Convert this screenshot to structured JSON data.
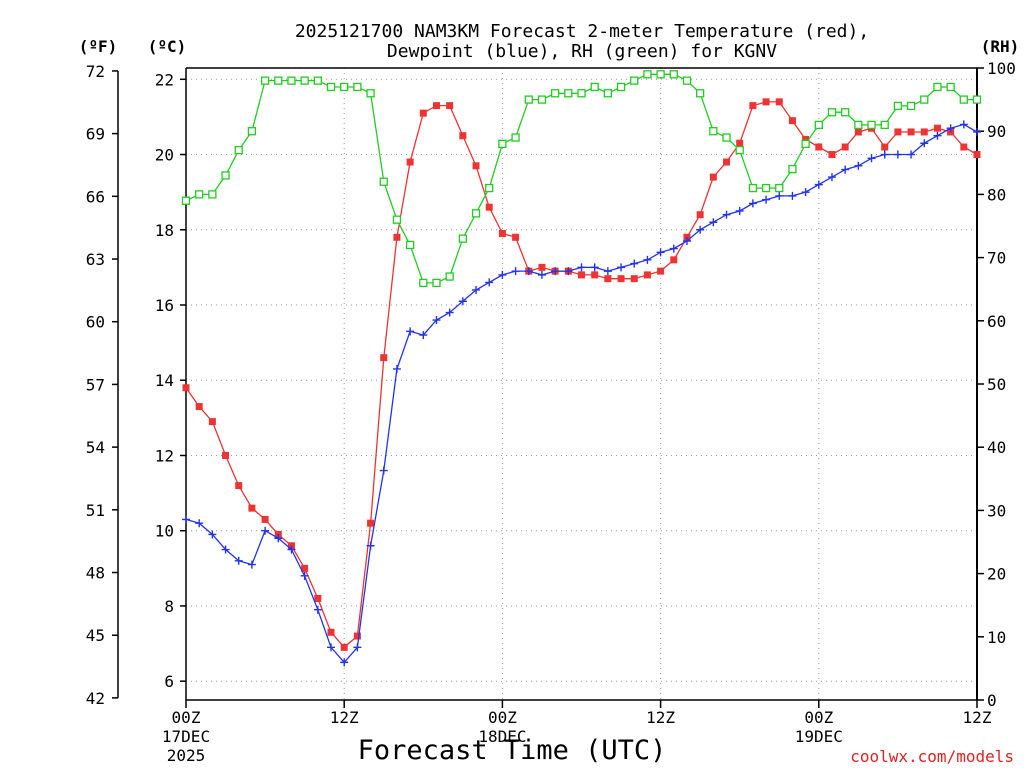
{
  "chart_data": {
    "type": "line",
    "title_line1": "2025121700 NAM3KM Forecast 2-meter Temperature (red),",
    "title_line2": "Dewpoint (blue), RH (green) for KGNV",
    "xlabel": "Forecast Time (UTC)",
    "credit": "coolwx.com/models",
    "left_outer_label": "(ºF)",
    "left_inner_label": "(ºC)",
    "right_label": "(RH)",
    "x_unit": "forecast hour",
    "xlim": [
      0,
      60
    ],
    "ylim_c": [
      5.5,
      22.3
    ],
    "ylim_rh": [
      0,
      100
    ],
    "x_ticks": [
      {
        "hour": 0,
        "label1": "00Z",
        "label2": "17DEC",
        "label3": "2025"
      },
      {
        "hour": 12,
        "label1": "12Z",
        "label2": "",
        "label3": ""
      },
      {
        "hour": 24,
        "label1": "00Z",
        "label2": "18DEC",
        "label3": ""
      },
      {
        "hour": 36,
        "label1": "12Z",
        "label2": "",
        "label3": ""
      },
      {
        "hour": 48,
        "label1": "00Z",
        "label2": "19DEC",
        "label3": ""
      },
      {
        "hour": 60,
        "label1": "12Z",
        "label2": "",
        "label3": ""
      }
    ],
    "celsius_ticks": [
      6,
      8,
      10,
      12,
      14,
      16,
      18,
      20,
      22
    ],
    "fahrenheit_ticks": [
      {
        "c": 5.556,
        "label": "42"
      },
      {
        "c": 7.222,
        "label": "45"
      },
      {
        "c": 8.889,
        "label": "48"
      },
      {
        "c": 10.556,
        "label": "51"
      },
      {
        "c": 12.222,
        "label": "54"
      },
      {
        "c": 13.889,
        "label": "57"
      },
      {
        "c": 15.556,
        "label": "60"
      },
      {
        "c": 17.222,
        "label": "63"
      },
      {
        "c": 18.889,
        "label": "66"
      },
      {
        "c": 20.556,
        "label": "69"
      },
      {
        "c": 22.222,
        "label": "72"
      }
    ],
    "rh_ticks": [
      0,
      10,
      20,
      30,
      40,
      50,
      60,
      70,
      80,
      90,
      100
    ],
    "series": [
      {
        "name": "Temperature",
        "unit": "C",
        "color": "#ee3333",
        "marker": "filled-square",
        "x": [
          0,
          1,
          2,
          3,
          4,
          5,
          6,
          7,
          8,
          9,
          10,
          11,
          12,
          13,
          14,
          15,
          16,
          17,
          18,
          19,
          20,
          21,
          22,
          23,
          24,
          25,
          26,
          27,
          28,
          29,
          30,
          31,
          32,
          33,
          34,
          35,
          36,
          37,
          38,
          39,
          40,
          41,
          42,
          43,
          44,
          45,
          46,
          47,
          48,
          49,
          50,
          51,
          52,
          53,
          54,
          55,
          56,
          57,
          58,
          59,
          60
        ],
        "values": [
          13.8,
          13.3,
          12.9,
          12.0,
          11.2,
          10.6,
          10.3,
          9.9,
          9.6,
          9.0,
          8.2,
          7.3,
          6.9,
          7.2,
          10.2,
          14.6,
          17.8,
          19.8,
          21.1,
          21.3,
          21.3,
          20.5,
          19.7,
          18.6,
          17.9,
          17.8,
          16.9,
          17.0,
          16.9,
          16.9,
          16.8,
          16.8,
          16.7,
          16.7,
          16.7,
          16.8,
          16.9,
          17.2,
          17.8,
          18.4,
          19.4,
          19.8,
          20.3,
          21.3,
          21.4,
          21.4,
          20.9,
          20.4,
          20.2,
          20.0,
          20.2,
          20.6,
          20.7,
          20.2,
          20.6,
          20.6,
          20.6,
          20.7,
          20.6,
          20.2,
          20.0
        ]
      },
      {
        "name": "Dewpoint",
        "unit": "C",
        "color": "#2233ee",
        "marker": "plus",
        "x": [
          0,
          1,
          2,
          3,
          4,
          5,
          6,
          7,
          8,
          9,
          10,
          11,
          12,
          13,
          14,
          15,
          16,
          17,
          18,
          19,
          20,
          21,
          22,
          23,
          24,
          25,
          26,
          27,
          28,
          29,
          30,
          31,
          32,
          33,
          34,
          35,
          36,
          37,
          38,
          39,
          40,
          41,
          42,
          43,
          44,
          45,
          46,
          47,
          48,
          49,
          50,
          51,
          52,
          53,
          54,
          55,
          56,
          57,
          58,
          59,
          60
        ],
        "values": [
          10.3,
          10.2,
          9.9,
          9.5,
          9.2,
          9.1,
          10.0,
          9.8,
          9.5,
          8.8,
          7.9,
          6.9,
          6.5,
          6.9,
          9.6,
          11.6,
          14.3,
          15.3,
          15.2,
          15.6,
          15.8,
          16.1,
          16.4,
          16.6,
          16.8,
          16.9,
          16.9,
          16.8,
          16.9,
          16.9,
          17.0,
          17.0,
          16.9,
          17.0,
          17.1,
          17.2,
          17.4,
          17.5,
          17.7,
          18.0,
          18.2,
          18.4,
          18.5,
          18.7,
          18.8,
          18.9,
          18.9,
          19.0,
          19.2,
          19.4,
          19.6,
          19.7,
          19.9,
          20.0,
          20.0,
          20.0,
          20.3,
          20.5,
          20.7,
          20.8,
          20.6
        ]
      },
      {
        "name": "RH",
        "unit": "%",
        "color": "#22cc22",
        "marker": "open-square",
        "x": [
          0,
          1,
          2,
          3,
          4,
          5,
          6,
          7,
          8,
          9,
          10,
          11,
          12,
          13,
          14,
          15,
          16,
          17,
          18,
          19,
          20,
          21,
          22,
          23,
          24,
          25,
          26,
          27,
          28,
          29,
          30,
          31,
          32,
          33,
          34,
          35,
          36,
          37,
          38,
          39,
          40,
          41,
          42,
          43,
          44,
          45,
          46,
          47,
          48,
          49,
          50,
          51,
          52,
          53,
          54,
          55,
          56,
          57,
          58,
          59,
          60
        ],
        "values": [
          79,
          80,
          80,
          83,
          87,
          90,
          98,
          98,
          98,
          98,
          98,
          97,
          97,
          97,
          96,
          82,
          76,
          72,
          66,
          66,
          67,
          73,
          77,
          81,
          88,
          89,
          95,
          95,
          96,
          96,
          96,
          97,
          96,
          97,
          98,
          99,
          99,
          99,
          98,
          96,
          90,
          89,
          87,
          81,
          81,
          81,
          84,
          88,
          91,
          93,
          93,
          91,
          91,
          91,
          94,
          94,
          95,
          97,
          97,
          95,
          95
        ]
      }
    ]
  }
}
